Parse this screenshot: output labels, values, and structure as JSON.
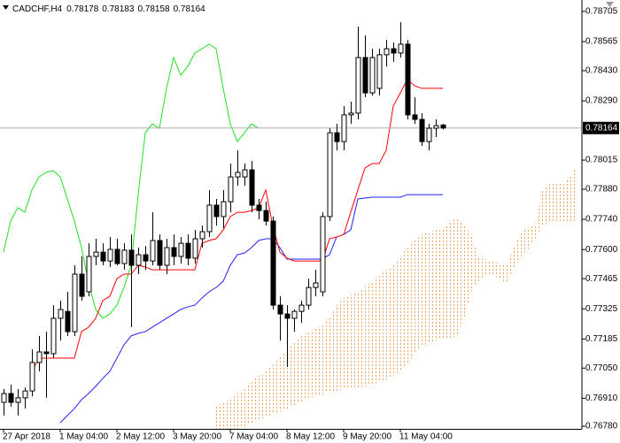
{
  "chart_data": {
    "type": "candlestick",
    "title": "CADCHF,H4",
    "categories": [
      "27 Apr 2018",
      null,
      null,
      null,
      null,
      null,
      null,
      null,
      "1 May 04:00",
      null,
      null,
      null,
      null,
      null,
      null,
      null,
      "2 May 12:00",
      null,
      null,
      null,
      null,
      null,
      null,
      null,
      "3 May 20:00",
      null,
      null,
      null,
      null,
      null,
      null,
      null,
      "7 May 04:00",
      null,
      null,
      null,
      null,
      null,
      null,
      null,
      "8 May 12:00",
      null,
      null,
      null,
      null,
      null,
      null,
      null,
      "9 May 20:00",
      null,
      null,
      null,
      null,
      null,
      null,
      null,
      "11 May 04:00",
      null,
      null,
      null,
      null,
      null,
      null,
      null,
      null,
      null,
      null,
      null,
      null,
      null,
      null,
      null,
      null,
      null,
      null,
      null,
      null,
      null,
      null,
      null,
      null,
      null
    ],
    "open": [
      0.76891,
      0.76932,
      0.76891,
      0.76912,
      0.76944,
      0.77076,
      0.77125,
      0.77117,
      0.77281,
      0.77313,
      0.77219,
      0.77486,
      0.77404,
      0.77568,
      0.77588,
      0.77547,
      0.77601,
      0.77535,
      0.77597,
      0.77527,
      0.77576,
      0.77547,
      0.77642,
      0.77527,
      0.77609,
      0.77568,
      0.77629,
      0.7756,
      0.7765,
      0.77683,
      0.77806,
      0.77753,
      0.77822,
      0.77937,
      0.77937,
      0.7797,
      0.77806,
      0.77781,
      0.77732,
      0.77342,
      0.77301,
      0.77281,
      0.77313,
      0.77342,
      0.77424,
      0.77404,
      0.77753,
      0.78142,
      0.78101,
      0.78225,
      0.78233,
      0.78491,
      0.78327,
      0.78348,
      0.78504,
      0.78532,
      0.78512,
      0.78553,
      0.78225,
      0.78204,
      0.78101,
      0.78163,
      0.78178,
      null,
      null,
      null,
      null,
      null,
      null,
      null,
      null,
      null,
      null,
      null,
      null,
      null,
      null,
      null,
      null,
      null,
      null,
      null
    ],
    "high": [
      0.76953,
      0.76973,
      0.76953,
      0.7696,
      0.77137,
      0.77199,
      0.77219,
      0.77342,
      0.77363,
      0.77404,
      0.77527,
      0.77568,
      0.77629,
      0.7765,
      0.77629,
      0.77658,
      0.7765,
      0.77629,
      0.7767,
      0.77609,
      0.77617,
      0.77773,
      0.7767,
      0.7765,
      0.7767,
      0.77658,
      0.7767,
      0.77691,
      0.77711,
      0.77876,
      0.77835,
      0.77876,
      0.77999,
      0.7806,
      0.77999,
      0.78011,
      0.77835,
      0.77822,
      0.77753,
      0.77383,
      0.77342,
      0.77322,
      0.77363,
      0.77465,
      0.77506,
      0.77773,
      0.78163,
      0.78183,
      0.78266,
      0.78286,
      0.78635,
      0.78594,
      0.78532,
      0.78532,
      0.78573,
      0.78561,
      0.78655,
      0.78573,
      0.78307,
      0.78233,
      0.78183,
      0.78204,
      0.78183,
      null,
      null,
      null,
      null,
      null,
      null,
      null,
      null,
      null,
      null,
      null,
      null,
      null,
      null,
      null,
      null,
      null,
      null,
      null
    ],
    "low": [
      0.7683,
      0.76871,
      0.7683,
      0.76862,
      0.76919,
      0.77035,
      0.76912,
      0.77096,
      0.77178,
      0.77199,
      0.77199,
      0.77363,
      0.77383,
      0.77527,
      0.77527,
      0.77519,
      0.77527,
      0.77506,
      0.7724,
      0.77486,
      0.77506,
      0.77527,
      0.77506,
      0.77486,
      0.77527,
      0.77535,
      0.77527,
      0.77535,
      0.77609,
      0.77658,
      0.77711,
      0.77699,
      0.77773,
      0.77896,
      0.77896,
      0.77773,
      0.7774,
      0.77711,
      0.77322,
      0.77178,
      0.77055,
      0.77219,
      0.7726,
      0.77322,
      0.77383,
      0.77383,
      0.77732,
      0.7806,
      0.7806,
      0.78183,
      0.78204,
      0.78307,
      0.78315,
      0.78315,
      0.7845,
      0.78471,
      0.78491,
      0.78204,
      0.78183,
      0.78081,
      0.7806,
      0.78122,
      0.78158,
      null,
      null,
      null,
      null,
      null,
      null,
      null,
      null,
      null,
      null,
      null,
      null,
      null,
      null,
      null,
      null,
      null,
      null,
      null
    ],
    "close": [
      0.76932,
      0.76891,
      0.76912,
      0.76944,
      0.77076,
      0.77125,
      0.77117,
      0.77281,
      0.77322,
      0.77219,
      0.77486,
      0.77383,
      0.77568,
      0.77588,
      0.77547,
      0.77601,
      0.77535,
      0.77597,
      0.77527,
      0.77576,
      0.77547,
      0.77642,
      0.77527,
      0.77609,
      0.77568,
      0.77629,
      0.7756,
      0.7765,
      0.77683,
      0.77806,
      0.77753,
      0.77822,
      0.77937,
      0.77958,
      0.7797,
      0.77806,
      0.77781,
      0.77732,
      0.77342,
      0.77301,
      0.77281,
      0.77313,
      0.77342,
      0.77424,
      0.77445,
      0.77753,
      0.78142,
      0.78101,
      0.78225,
      0.78233,
      0.78491,
      0.78327,
      0.78491,
      0.78504,
      0.78532,
      0.78512,
      0.78553,
      0.78225,
      0.78204,
      0.78101,
      0.78163,
      0.78175,
      0.78164,
      null,
      null,
      null,
      null,
      null,
      null,
      null,
      null,
      null,
      null,
      null,
      null,
      null,
      null,
      null,
      null,
      null,
      null,
      null
    ],
    "up_color": "#ffffff",
    "down_color": "#000000",
    "series": [
      {
        "color": "#ff0000",
        "values": [
          null,
          null,
          null,
          null,
          0.77035,
          0.77096,
          0.77096,
          0.77096,
          0.77096,
          0.77096,
          0.77096,
          0.77219,
          0.7724,
          0.77281,
          0.77363,
          0.77383,
          0.77465,
          0.77486,
          0.77486,
          0.77527,
          0.77519,
          0.77506,
          0.77506,
          0.77506,
          0.77506,
          0.77506,
          0.77506,
          0.77506,
          0.77629,
          0.77642,
          0.7765,
          0.77691,
          0.77753,
          0.77773,
          0.77773,
          0.77781,
          0.77794,
          0.77876,
          0.77711,
          0.77588,
          0.7756,
          0.77547,
          0.77547,
          0.77547,
          0.77547,
          0.77547,
          0.7765,
          0.77658,
          0.7767,
          0.77773,
          0.77876,
          0.77978,
          0.77999,
          0.77999,
          0.7806,
          0.78266,
          0.78327,
          0.78389,
          0.7836,
          0.78348,
          0.78348,
          0.78348,
          0.78348,
          null,
          null,
          null,
          null,
          null,
          null,
          null,
          null,
          null,
          null,
          null,
          null,
          null,
          null,
          null,
          null,
          null,
          null,
          null
        ]
      },
      {
        "color": "#2020ff",
        "values": [
          null,
          null,
          null,
          null,
          null,
          null,
          null,
          null,
          0.76796,
          0.7683,
          0.76862,
          0.76903,
          0.76932,
          0.76965,
          0.77002,
          0.77035,
          0.77096,
          0.77158,
          0.77199,
          0.77211,
          0.77219,
          0.7724,
          0.7726,
          0.77281,
          0.77301,
          0.77322,
          0.77334,
          0.77342,
          0.77375,
          0.77404,
          0.77424,
          0.77453,
          0.77527,
          0.77576,
          0.77584,
          0.77609,
          0.77642,
          0.7765,
          0.7765,
          0.77609,
          0.77556,
          0.77556,
          0.77556,
          0.77556,
          0.77556,
          0.77556,
          0.77576,
          0.77658,
          0.7767,
          0.77691,
          0.77835,
          0.77839,
          0.77843,
          0.77843,
          0.77843,
          0.77843,
          0.77843,
          0.77855,
          0.77855,
          0.77855,
          0.77855,
          0.77855,
          0.77855,
          null,
          null,
          null,
          null,
          null,
          null,
          null,
          null,
          null,
          null,
          null,
          null,
          null,
          null,
          null,
          null,
          null,
          null,
          null
        ]
      },
      {
        "color": "#22e022",
        "values": [
          0.77588,
          0.77732,
          0.77794,
          0.77773,
          0.77876,
          0.77937,
          0.77958,
          0.77966,
          0.77937,
          0.77835,
          0.77732,
          0.77609,
          0.77445,
          0.77322,
          0.77281,
          0.77301,
          0.77342,
          0.77424,
          0.77527,
          0.77855,
          0.78142,
          0.78183,
          0.78163,
          0.78348,
          0.78491,
          0.78409,
          0.7845,
          0.78512,
          0.78532,
          0.78553,
          0.78532,
          0.78348,
          0.78183,
          0.78101,
          0.78142,
          0.78183,
          0.78163,
          null,
          null,
          null,
          null,
          null,
          null,
          null,
          null,
          null,
          null,
          null,
          null,
          null,
          null,
          null,
          null,
          null,
          null,
          null,
          null,
          null,
          null,
          null,
          null,
          null,
          null,
          null,
          null,
          null,
          null,
          null,
          null,
          null,
          null,
          null,
          null,
          null,
          null,
          null,
          null,
          null,
          null,
          null,
          null,
          null
        ]
      }
    ],
    "cloud": {
      "color": "#f4a460",
      "span_a": [
        null,
        null,
        null,
        null,
        null,
        null,
        null,
        null,
        null,
        null,
        null,
        null,
        null,
        null,
        null,
        null,
        null,
        null,
        null,
        null,
        null,
        null,
        null,
        null,
        null,
        null,
        null,
        null,
        null,
        null,
        0.76871,
        0.76891,
        0.76903,
        0.76932,
        0.76953,
        0.76985,
        0.77014,
        0.77035,
        0.77067,
        0.77108,
        0.77137,
        0.77166,
        0.77199,
        0.77219,
        0.77231,
        0.77248,
        0.77281,
        0.77342,
        0.77375,
        0.77391,
        0.77404,
        0.77424,
        0.77453,
        0.77478,
        0.77506,
        0.77527,
        0.77568,
        0.77609,
        0.7765,
        0.7767,
        0.77679,
        0.77691,
        0.77699,
        0.77732,
        0.77753,
        0.77711,
        0.7767,
        0.77568,
        0.77556,
        0.77543,
        0.77535,
        0.77527,
        0.77609,
        0.77683,
        0.77699,
        0.77711,
        0.77876,
        0.77904,
        0.77908,
        0.77913,
        0.77937,
        0.77999
      ],
      "span_b": [
        null,
        null,
        null,
        null,
        null,
        null,
        null,
        null,
        null,
        null,
        null,
        null,
        null,
        null,
        null,
        null,
        null,
        null,
        null,
        null,
        null,
        null,
        null,
        null,
        null,
        null,
        null,
        null,
        null,
        null,
        0.76747,
        0.76747,
        0.76755,
        0.76768,
        0.7678,
        0.76796,
        0.76809,
        0.76821,
        0.76837,
        0.7685,
        0.76862,
        0.76878,
        0.76891,
        0.76912,
        0.76919,
        0.76932,
        0.7694,
        0.76944,
        0.76953,
        0.76953,
        0.7696,
        0.76965,
        0.76973,
        0.76985,
        0.76994,
        0.77014,
        0.77035,
        0.77067,
        0.77117,
        0.77149,
        0.77166,
        0.77178,
        0.77186,
        0.7719,
        0.77199,
        0.77281,
        0.77404,
        0.77453,
        0.77478,
        0.77486,
        0.77465,
        0.77445,
        0.77506,
        0.77568,
        0.77601,
        0.7765,
        0.77711,
        0.77724,
        0.77724,
        0.77724,
        0.77732,
        0.77732
      ]
    },
    "ylim": [
      0.76768,
      0.78758
    ],
    "yticks": [
      0.78705,
      0.78565,
      {
        "value": 0.7843,
        "label": "0.78430"
      },
      {
        "value": 0.7829,
        "label": "0.78290"
      },
      0.78015,
      {
        "value": 0.7788,
        "label": "0.77880"
      },
      {
        "value": 0.7774,
        "label": "0.77740"
      },
      {
        "value": 0.776,
        "label": "0.77600"
      },
      0.77465,
      0.77325,
      0.77185,
      {
        "value": 0.7705,
        "label": "0.77050"
      },
      {
        "value": 0.7691,
        "label": "0.76910"
      },
      {
        "value": 0.7678,
        "label": "0.76780"
      }
    ],
    "grid": false
  }
}
